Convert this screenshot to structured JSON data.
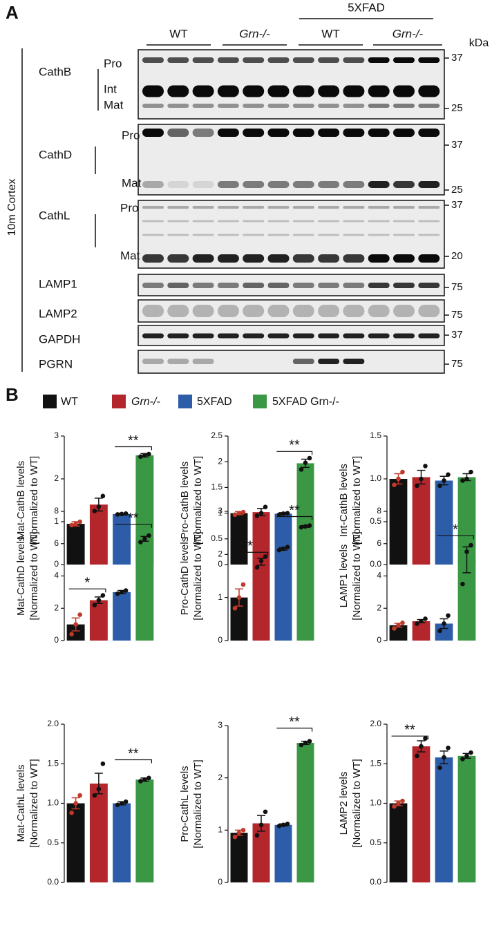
{
  "figure_a": {
    "panel": "A",
    "top_group": "5XFAD",
    "genotypes": [
      "WT",
      "Grn-/-",
      "WT",
      "Grn-/-"
    ],
    "unit": "kDa",
    "region": "10m Cortex",
    "blots": [
      {
        "name": "CathB",
        "forms": [
          "Pro",
          "Int",
          "Mat"
        ],
        "markers": [
          37,
          25
        ]
      },
      {
        "name": "CathD",
        "forms": [
          "Pro",
          "Mat"
        ],
        "markers": [
          37,
          25
        ]
      },
      {
        "name": "CathL",
        "forms": [
          "Pro",
          "Mat"
        ],
        "markers": [
          37,
          20
        ]
      },
      {
        "name": "LAMP1",
        "forms": [],
        "markers": [
          75
        ]
      },
      {
        "name": "LAMP2",
        "forms": [],
        "markers": [
          75
        ]
      },
      {
        "name": "GAPDH",
        "forms": [],
        "markers": [
          37
        ]
      },
      {
        "name": "PGRN",
        "forms": [],
        "markers": [
          75
        ]
      }
    ]
  },
  "panel_b": "B",
  "legend": [
    {
      "label": "WT",
      "color": "#111111"
    },
    {
      "label": "Grn-/-",
      "color": "#b3262c"
    },
    {
      "label": "5XFAD",
      "color": "#2d5ca8"
    },
    {
      "label": "5XFAD Grn-/-",
      "color": "#3a9744"
    }
  ],
  "point_colors": [
    "#c0392b",
    "#111111",
    "#111111",
    "#111111"
  ],
  "chart_data": [
    {
      "type": "bar",
      "ylabel": [
        "Mat-CathB levels",
        "[Normalized to WT]"
      ],
      "values": [
        0.95,
        1.4,
        1.18,
        2.55
      ],
      "errors": [
        0.05,
        0.15,
        0.02,
        0.04
      ],
      "points": [
        [
          0.92,
          0.95,
          1.0
        ],
        [
          1.25,
          1.35,
          1.6
        ],
        [
          1.17,
          1.18,
          1.19
        ],
        [
          2.52,
          2.55,
          2.58
        ]
      ],
      "ylim": [
        0,
        3
      ],
      "yticks": [
        0,
        1,
        2,
        3
      ],
      "significance": [
        {
          "label": "**",
          "from": 2,
          "to": 3,
          "y": 2.75
        }
      ]
    },
    {
      "type": "bar",
      "ylabel": [
        "Pro-CathB levels",
        "[Normalized to WT]"
      ],
      "values": [
        1.0,
        1.02,
        0.99,
        1.97
      ],
      "errors": [
        0.03,
        0.07,
        0.02,
        0.08
      ],
      "points": [
        [
          0.97,
          1.0,
          1.02
        ],
        [
          0.95,
          1.0,
          1.12
        ],
        [
          0.97,
          0.99,
          1.0
        ],
        [
          1.85,
          1.98,
          2.07
        ]
      ],
      "ylim": [
        0,
        2.5
      ],
      "yticks": [
        0,
        0.5,
        1,
        1.5,
        2,
        2.5
      ],
      "significance": [
        {
          "label": "**",
          "from": 2,
          "to": 3,
          "y": 2.2
        }
      ]
    },
    {
      "type": "bar",
      "ylabel": [
        "Int-CathB levels",
        "[Normalized to WT]"
      ],
      "values": [
        1.0,
        1.02,
        0.98,
        1.02
      ],
      "errors": [
        0.06,
        0.08,
        0.05,
        0.04
      ],
      "points": [
        [
          0.93,
          1.0,
          1.08
        ],
        [
          0.92,
          1.0,
          1.15
        ],
        [
          0.92,
          0.98,
          1.05
        ],
        [
          0.98,
          1.0,
          1.08
        ]
      ],
      "ylim": [
        0,
        1.5
      ],
      "yticks": [
        {
          "value": 0,
          "label": "0.0"
        },
        {
          "value": 0.5,
          "label": "0.5"
        },
        {
          "value": 1,
          "label": "1.0"
        },
        {
          "value": 1.5,
          "label": "1.5"
        }
      ],
      "significance": []
    },
    {
      "type": "bar",
      "ylabel": [
        "Mat-CathD levels",
        "[Normalized to WT]"
      ],
      "values": [
        1.0,
        2.5,
        3.0,
        6.3
      ],
      "errors": [
        0.4,
        0.2,
        0.1,
        0.15
      ],
      "points": [
        [
          0.4,
          1.0,
          1.6
        ],
        [
          2.2,
          2.5,
          2.8
        ],
        [
          2.9,
          3.0,
          3.1
        ],
        [
          6.1,
          6.3,
          6.5
        ]
      ],
      "ylim": [
        0,
        8
      ],
      "yticks": [
        0,
        2,
        4,
        6,
        8
      ],
      "significance": [
        {
          "label": "*",
          "from": 0,
          "to": 1,
          "y": 3.2
        },
        {
          "label": "**",
          "from": 2,
          "to": 3,
          "y": 7.2
        }
      ]
    },
    {
      "type": "bar",
      "ylabel": [
        "Pro-CathD levels",
        "[Normalized to WT]"
      ],
      "values": [
        1.0,
        1.83,
        2.13,
        2.65
      ],
      "errors": [
        0.2,
        0.08,
        0.03,
        0.02
      ],
      "points": [
        [
          0.75,
          1.0,
          1.3
        ],
        [
          1.7,
          1.85,
          1.95
        ],
        [
          2.1,
          2.13,
          2.17
        ],
        [
          2.63,
          2.65,
          2.67
        ]
      ],
      "ylim": [
        0,
        3
      ],
      "yticks": [
        0,
        1,
        2,
        3
      ],
      "significance": [
        {
          "label": "*",
          "from": 0,
          "to": 1,
          "y": 2.05
        },
        {
          "label": "**",
          "from": 2,
          "to": 3,
          "y": 2.88
        }
      ]
    },
    {
      "type": "bar",
      "ylabel": [
        "LAMP1 levels",
        "[Normalized to WT]"
      ],
      "values": [
        0.95,
        1.2,
        1.05,
        5.0
      ],
      "errors": [
        0.12,
        0.1,
        0.3,
        0.8
      ],
      "points": [
        [
          0.75,
          0.95,
          1.1
        ],
        [
          1.05,
          1.2,
          1.35
        ],
        [
          0.6,
          1.05,
          1.55
        ],
        [
          3.5,
          5.5,
          5.9
        ]
      ],
      "ylim": [
        0,
        8
      ],
      "yticks": [
        0,
        2,
        4,
        6,
        8
      ],
      "significance": [
        {
          "label": "*",
          "from": 2,
          "to": 3,
          "y": 6.5
        }
      ]
    },
    {
      "type": "bar",
      "ylabel": [
        "Mat-CathL levels",
        "[Normalized to WT]"
      ],
      "values": [
        1.0,
        1.25,
        1.0,
        1.3
      ],
      "errors": [
        0.07,
        0.13,
        0.02,
        0.02
      ],
      "points": [
        [
          0.88,
          1.0,
          1.1
        ],
        [
          1.1,
          1.18,
          1.5
        ],
        [
          0.98,
          1.0,
          1.02
        ],
        [
          1.28,
          1.3,
          1.32
        ]
      ],
      "ylim": [
        0,
        2
      ],
      "yticks": [
        {
          "value": 0,
          "label": "0.0"
        },
        {
          "value": 0.5,
          "label": "0.5"
        },
        {
          "value": 1,
          "label": "1.0"
        },
        {
          "value": 1.5,
          "label": "1.5"
        },
        {
          "value": 2,
          "label": "2.0"
        }
      ],
      "significance": [
        {
          "label": "**",
          "from": 2,
          "to": 3,
          "y": 1.55
        }
      ]
    },
    {
      "type": "bar",
      "ylabel": [
        "Pro-CathL levels",
        "[Normalized to WT]"
      ],
      "values": [
        0.95,
        1.13,
        1.1,
        2.67
      ],
      "errors": [
        0.05,
        0.15,
        0.02,
        0.03
      ],
      "points": [
        [
          0.87,
          0.95,
          1.0
        ],
        [
          0.9,
          1.1,
          1.35
        ],
        [
          1.08,
          1.1,
          1.12
        ],
        [
          2.63,
          2.67,
          2.7
        ]
      ],
      "ylim": [
        0,
        3
      ],
      "yticks": [
        0,
        1,
        2,
        3
      ],
      "significance": [
        {
          "label": "**",
          "from": 2,
          "to": 3,
          "y": 2.95
        }
      ]
    },
    {
      "type": "bar",
      "ylabel": [
        "LAMP2 levels",
        "[Normalized to WT]"
      ],
      "values": [
        1.0,
        1.72,
        1.58,
        1.6
      ],
      "errors": [
        0.03,
        0.07,
        0.08,
        0.03
      ],
      "points": [
        [
          0.96,
          1.0,
          1.03
        ],
        [
          1.6,
          1.72,
          1.82
        ],
        [
          1.45,
          1.58,
          1.7
        ],
        [
          1.56,
          1.6,
          1.64
        ]
      ],
      "ylim": [
        0,
        2
      ],
      "yticks": [
        {
          "value": 0,
          "label": "0.0"
        },
        {
          "value": 0.5,
          "label": "0.5"
        },
        {
          "value": 1,
          "label": "1.0"
        },
        {
          "value": 1.5,
          "label": "1.5"
        },
        {
          "value": 2,
          "label": "2.0"
        }
      ],
      "significance": [
        {
          "label": "**",
          "from": 0,
          "to": 1,
          "y": 1.85
        }
      ]
    }
  ]
}
